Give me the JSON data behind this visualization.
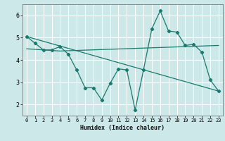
{
  "bg_color": "#cce8e8",
  "grid_color": "#ffffff",
  "line_color": "#1a7a6e",
  "xlabel": "Humidex (Indice chaleur)",
  "xlim": [
    -0.5,
    23.5
  ],
  "ylim": [
    1.5,
    6.5
  ],
  "yticks": [
    2,
    3,
    4,
    5,
    6
  ],
  "xticks": [
    0,
    1,
    2,
    3,
    4,
    5,
    6,
    7,
    8,
    9,
    10,
    11,
    12,
    13,
    14,
    15,
    16,
    17,
    18,
    19,
    20,
    21,
    22,
    23
  ],
  "line1_x": [
    0,
    1,
    2,
    3,
    4,
    5,
    6,
    7,
    8,
    9,
    10,
    11,
    12,
    13,
    14,
    15,
    16,
    17,
    18,
    19,
    20,
    21,
    22,
    23
  ],
  "line1_y": [
    5.05,
    4.75,
    4.45,
    4.45,
    4.6,
    4.25,
    3.55,
    2.75,
    2.75,
    2.2,
    2.95,
    3.6,
    3.55,
    1.75,
    3.55,
    5.4,
    6.2,
    5.3,
    5.25,
    4.65,
    4.7,
    4.35,
    3.1,
    2.6
  ],
  "line2_x": [
    0,
    23
  ],
  "line2_y": [
    5.05,
    2.6
  ],
  "line3_x": [
    0,
    4,
    23
  ],
  "line3_y": [
    4.5,
    4.4,
    4.65
  ]
}
